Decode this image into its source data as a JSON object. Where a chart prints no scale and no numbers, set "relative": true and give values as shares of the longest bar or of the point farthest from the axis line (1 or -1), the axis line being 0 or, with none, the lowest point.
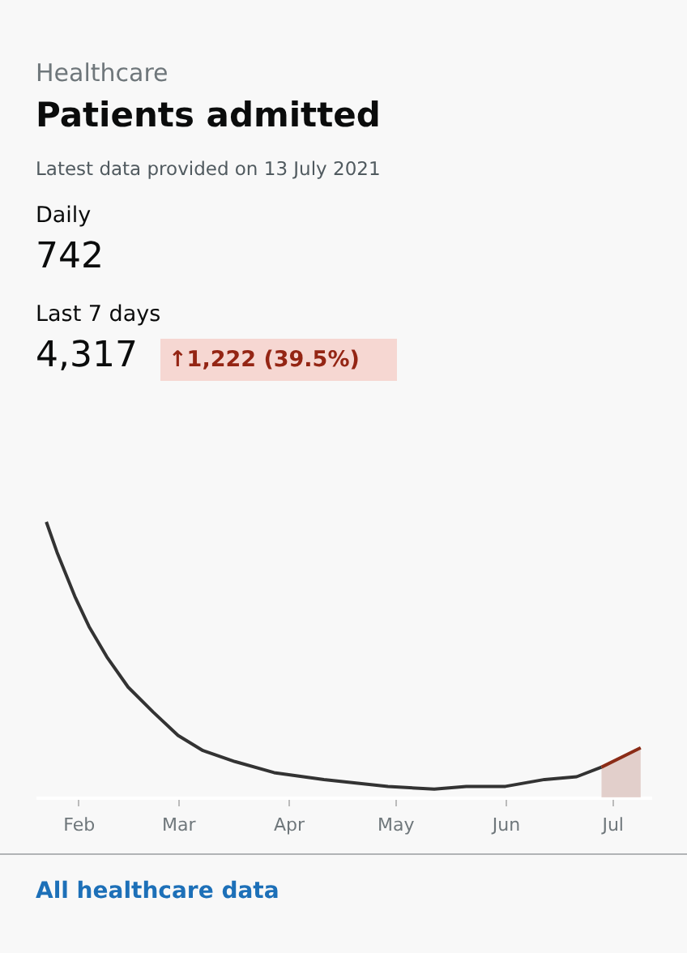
{
  "chart_data": {
    "type": "line",
    "title": "Patients admitted",
    "subtitle": "Latest data provided on 13 July 2021",
    "annotations": [
      "Healthcare",
      "Daily",
      "742",
      "Last 7 days",
      "4,317",
      "↑1,222 (39.5%)",
      "All healthcare data"
    ],
    "relative": true,
    "grid": false,
    "line_style": "solid",
    "marker": "none",
    "xlim": [
      "2021-01-20",
      "2021-07-12"
    ],
    "xticks": [
      {
        "value": "2021-02-01",
        "label": "Feb"
      },
      {
        "value": "2021-03-01",
        "label": "Mar"
      },
      {
        "value": "2021-04-01",
        "label": "Apr"
      },
      {
        "value": "2021-05-01",
        "label": "May"
      },
      {
        "value": "2021-06-01",
        "label": "Jun"
      },
      {
        "value": "2021-07-01",
        "label": "Jul"
      }
    ],
    "series": [
      {
        "type": "line",
        "color": "#333333",
        "x": [
          "2021-01-23",
          "2021-01-26",
          "2021-01-31",
          "2021-02-04",
          "2021-02-09",
          "2021-02-15",
          "2021-02-22",
          "2021-03-01",
          "2021-03-08",
          "2021-03-17",
          "2021-03-28",
          "2021-04-11",
          "2021-04-29",
          "2021-05-12",
          "2021-05-21",
          "2021-06-01",
          "2021-06-12",
          "2021-06-21",
          "2021-06-28"
        ],
        "values": [
          1.0,
          0.89,
          0.73,
          0.62,
          0.51,
          0.4,
          0.31,
          0.225,
          0.17,
          0.13,
          0.09,
          0.065,
          0.04,
          0.03,
          0.04,
          0.04,
          0.065,
          0.075,
          0.11
        ]
      },
      {
        "type": "area",
        "color": "#8b2c17",
        "x": [
          "2021-06-28",
          "2021-07-09"
        ],
        "values": [
          0.11,
          0.18
        ]
      }
    ]
  }
}
